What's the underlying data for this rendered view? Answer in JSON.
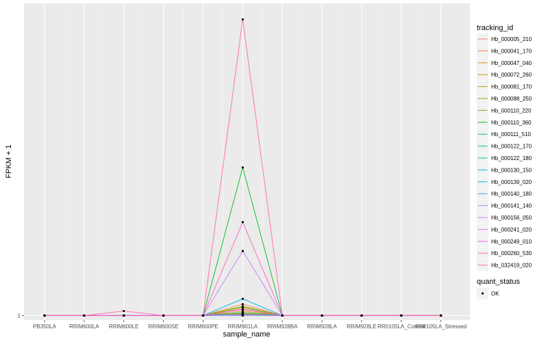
{
  "chart_data": {
    "type": "line",
    "xlabel": "sample_name",
    "ylabel": "FPKM + 1",
    "y_tick_labels": [
      "1"
    ],
    "y_ticks": [
      1
    ],
    "categories": [
      "PB350LA",
      "RRIM600LA",
      "RRIM600LE",
      "RRIM600SE",
      "RRIM600PE",
      "RRIM901LA",
      "RRIM928BA",
      "RRIM928LA",
      "RRIM928LE",
      "RRII105LA_Control",
      "RRII105LA_Stressed"
    ],
    "grid": true,
    "legend_position": "right",
    "legend_title": "tracking_id",
    "series": [
      {
        "name": "Hb_000005_210",
        "color": "#F8766D",
        "values": [
          1,
          1,
          1,
          1,
          1,
          1.9,
          1,
          1,
          1,
          1,
          1
        ]
      },
      {
        "name": "Hb_000041_170",
        "color": "#EE8043",
        "values": [
          1,
          1,
          1,
          1,
          1,
          2.5,
          1,
          1,
          1,
          1,
          1
        ]
      },
      {
        "name": "Hb_000047_040",
        "color": "#E08B00",
        "values": [
          1,
          1,
          1,
          1,
          1,
          1.3,
          1,
          1,
          1,
          1,
          1
        ]
      },
      {
        "name": "Hb_000072_260",
        "color": "#CD9600",
        "values": [
          1,
          1,
          1,
          1,
          1,
          1.6,
          1,
          1,
          1,
          1,
          1
        ]
      },
      {
        "name": "Hb_000081_170",
        "color": "#B59F00",
        "values": [
          1,
          1,
          1,
          1,
          1,
          1.2,
          1,
          1,
          1,
          1,
          1
        ]
      },
      {
        "name": "Hb_000088_250",
        "color": "#98A600",
        "values": [
          1,
          1,
          1,
          1,
          1,
          2.1,
          1,
          1,
          1,
          1,
          1
        ]
      },
      {
        "name": "Hb_000110_220",
        "color": "#6FAB00",
        "values": [
          1,
          1,
          1,
          1,
          1,
          2.2,
          1,
          1,
          1,
          1,
          1
        ]
      },
      {
        "name": "Hb_000110_360",
        "color": "#00B81F",
        "values": [
          1,
          1,
          1,
          1,
          1,
          20.5,
          1,
          1,
          1,
          1,
          1
        ]
      },
      {
        "name": "Hb_000111_510",
        "color": "#00BE6C",
        "values": [
          1,
          1,
          1,
          1,
          1,
          1.4,
          1,
          1,
          1,
          1,
          1
        ]
      },
      {
        "name": "Hb_000122_170",
        "color": "#00C092",
        "values": [
          1,
          1,
          1,
          1,
          1,
          1.1,
          1,
          1,
          1,
          1,
          1
        ]
      },
      {
        "name": "Hb_000122_180",
        "color": "#00C0B4",
        "values": [
          1,
          1,
          1,
          1,
          1,
          1.05,
          1,
          1,
          1,
          1,
          1
        ]
      },
      {
        "name": "Hb_000130_150",
        "color": "#00BBD3",
        "values": [
          1,
          1,
          1,
          1,
          1,
          1.0,
          1,
          1,
          1,
          1,
          1
        ]
      },
      {
        "name": "Hb_000139_020",
        "color": "#00B2EC",
        "values": [
          1,
          1,
          1,
          1,
          1,
          3.2,
          1,
          1,
          1,
          1,
          1
        ]
      },
      {
        "name": "Hb_000140_180",
        "color": "#35A2FF",
        "values": [
          1,
          1,
          1,
          1,
          1,
          1.15,
          1,
          1,
          1,
          1,
          1
        ]
      },
      {
        "name": "Hb_000141_140",
        "color": "#8F91FF",
        "values": [
          1,
          1,
          1,
          1,
          1,
          1.1,
          1,
          1,
          1,
          1,
          1
        ]
      },
      {
        "name": "Hb_000156_050",
        "color": "#C77CFF",
        "values": [
          1,
          1,
          1,
          1,
          1,
          9.5,
          1,
          1,
          1,
          1,
          1
        ]
      },
      {
        "name": "Hb_000241_020",
        "color": "#E76BF3",
        "values": [
          1,
          1,
          1,
          1,
          1,
          1.05,
          1,
          1,
          1,
          1,
          1
        ]
      },
      {
        "name": "Hb_000249_010",
        "color": "#F962DD",
        "values": [
          1,
          1,
          1,
          1,
          1,
          1.8,
          1,
          1,
          1,
          1,
          1
        ]
      },
      {
        "name": "Hb_000260_530",
        "color": "#FF61C3",
        "values": [
          1,
          1,
          1,
          1,
          1,
          13.3,
          1,
          1,
          1,
          1,
          1
        ]
      },
      {
        "name": "Hb_032419_020",
        "color": "#FF68A1",
        "values": [
          1,
          1,
          1.6,
          1,
          1,
          40,
          1,
          1,
          1,
          1,
          1
        ]
      }
    ],
    "ylim": [
      0.4,
      42.1
    ],
    "quant_status": {
      "title": "quant_status",
      "entries": [
        "OK"
      ]
    }
  }
}
